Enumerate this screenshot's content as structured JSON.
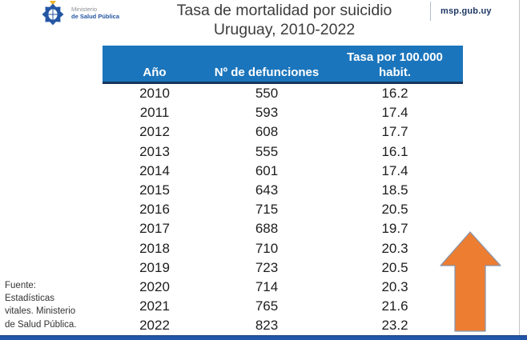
{
  "header": {
    "ministry_line1": "Ministerio",
    "ministry_line2": "de Salud Pública",
    "title_line1": "Tasa de mortalidad por suicidio",
    "title_line2": "Uruguay, 2010-2022",
    "site": "msp.gub.uy"
  },
  "table": {
    "header": {
      "col1": "Año",
      "col2": "Nº de defunciones",
      "col3_line1": "Tasa por 100.000",
      "col3_line2": "habit."
    },
    "rows": [
      [
        "2010",
        "550",
        "16.2"
      ],
      [
        "2011",
        "593",
        "17.4"
      ],
      [
        "2012",
        "608",
        "17.7"
      ],
      [
        "2013",
        "555",
        "16.1"
      ],
      [
        "2014",
        "601",
        "17.4"
      ],
      [
        "2015",
        "643",
        "18.5"
      ],
      [
        "2016",
        "715",
        "20.5"
      ],
      [
        "2017",
        "688",
        "19.7"
      ],
      [
        "2018",
        "710",
        "20.3"
      ],
      [
        "2019",
        "723",
        "20.5"
      ],
      [
        "2020",
        "714",
        "20.3"
      ],
      [
        "2021",
        "765",
        "21.6"
      ],
      [
        "2022",
        "823",
        "23.2"
      ]
    ]
  },
  "source": {
    "line1": "Fuente:",
    "line2": "Estadísticas",
    "line3": "vitales. Ministerio",
    "line4": "de Salud Pública."
  },
  "icons": {
    "coat_of_arms": "uruguay-coat-of-arms-icon",
    "up_arrow": "orange-up-arrow-icon"
  },
  "colors": {
    "header-blue": "#1B75BC",
    "header-border-navy": "#17375D",
    "bar-blue": "#2156A8",
    "bar-border": "#1A3E7E",
    "site-navy": "#1F3864",
    "emblem-blue": "#2456A4",
    "arrow-orange": "#ED7D31",
    "arrow-outline": "#8A97AD"
  },
  "chart_data": {
    "type": "table",
    "title": "Tasa de mortalidad por suicidio Uruguay, 2010-2022",
    "categories": [
      "2010",
      "2011",
      "2012",
      "2013",
      "2014",
      "2015",
      "2016",
      "2017",
      "2018",
      "2019",
      "2020",
      "2021",
      "2022"
    ],
    "series": [
      {
        "name": "Nº de defunciones",
        "values": [
          550,
          593,
          608,
          555,
          601,
          643,
          715,
          688,
          710,
          723,
          714,
          765,
          823
        ]
      },
      {
        "name": "Tasa por 100.000 habit.",
        "values": [
          16.2,
          17.4,
          17.7,
          16.1,
          17.4,
          18.5,
          20.5,
          19.7,
          20.3,
          20.5,
          20.3,
          21.6,
          23.2
        ]
      }
    ]
  }
}
